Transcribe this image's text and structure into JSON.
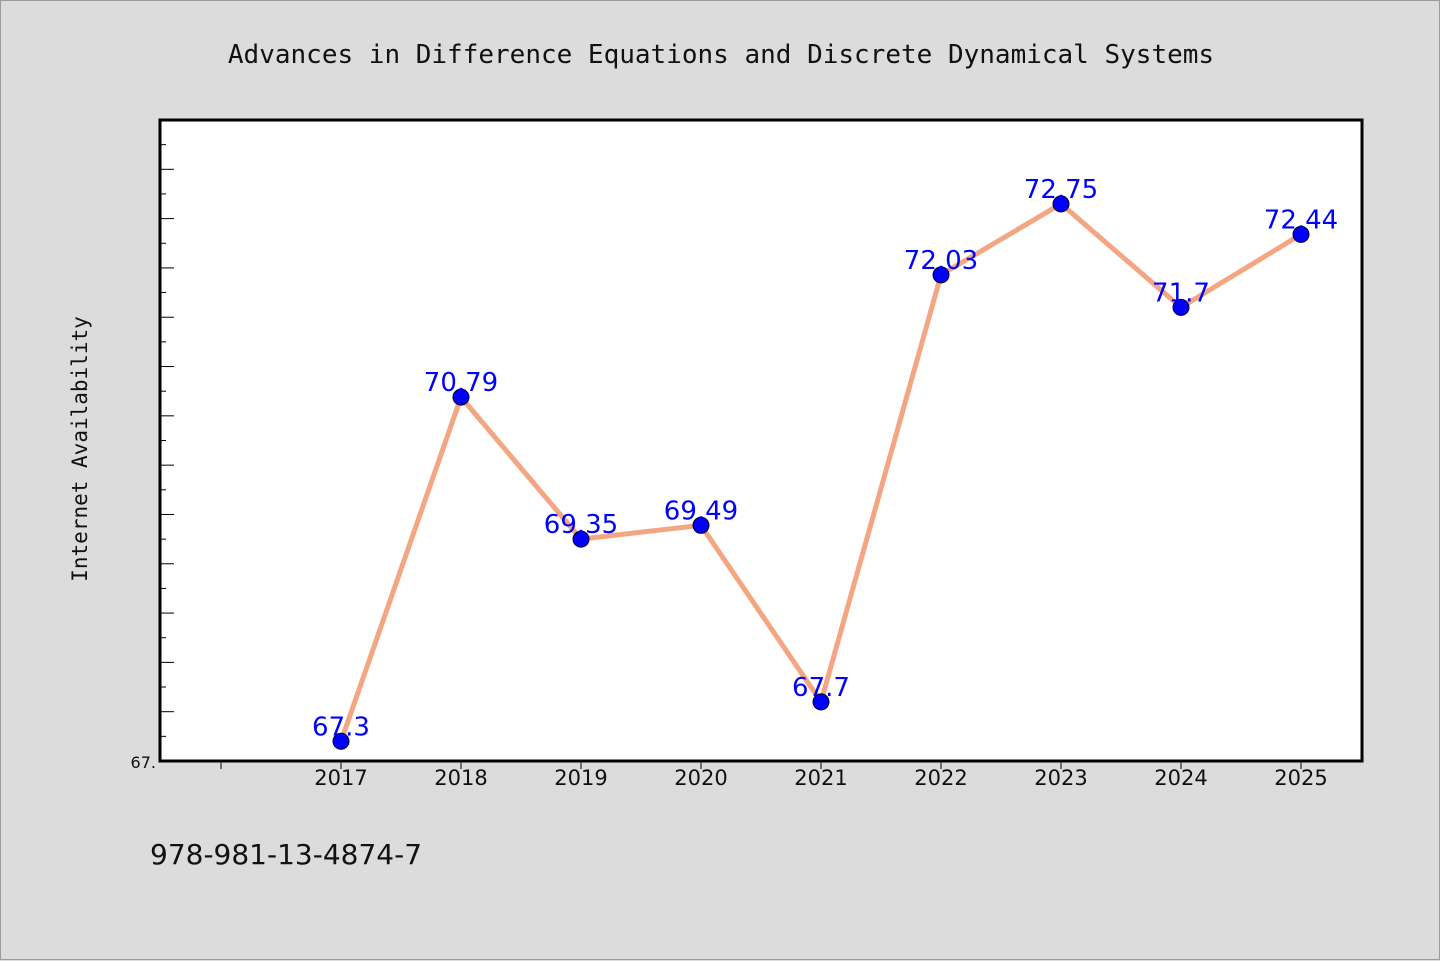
{
  "chart_data": {
    "type": "line",
    "title": "Advances in Difference Equations and Discrete Dynamical Systems",
    "xlabel": "",
    "ylabel": "Internet Availability",
    "categories": [
      "2017",
      "2018",
      "2019",
      "2020",
      "2021",
      "2022",
      "2023",
      "2024",
      "2025"
    ],
    "series": [
      {
        "values": [
          67.3,
          70.79,
          69.35,
          69.49,
          67.7,
          72.03,
          72.75,
          71.7,
          72.44
        ]
      }
    ],
    "data_labels": [
      "67.3",
      "70.79",
      "69.35",
      "69.49",
      "67.7",
      "72.03",
      "72.75",
      "71.7",
      "72.44"
    ],
    "y_tick_labels": [
      "67."
    ],
    "ylim": [
      67.1,
      73.6
    ],
    "grid": false,
    "legend": "none",
    "colors": {
      "line": "#f4a582",
      "marker": "#0000ff",
      "label": "#0000ff",
      "plot_bg": "#ffffff",
      "page_bg": "#dcdcdc"
    }
  },
  "footer": {
    "isbn": "978-981-13-4874-7"
  }
}
